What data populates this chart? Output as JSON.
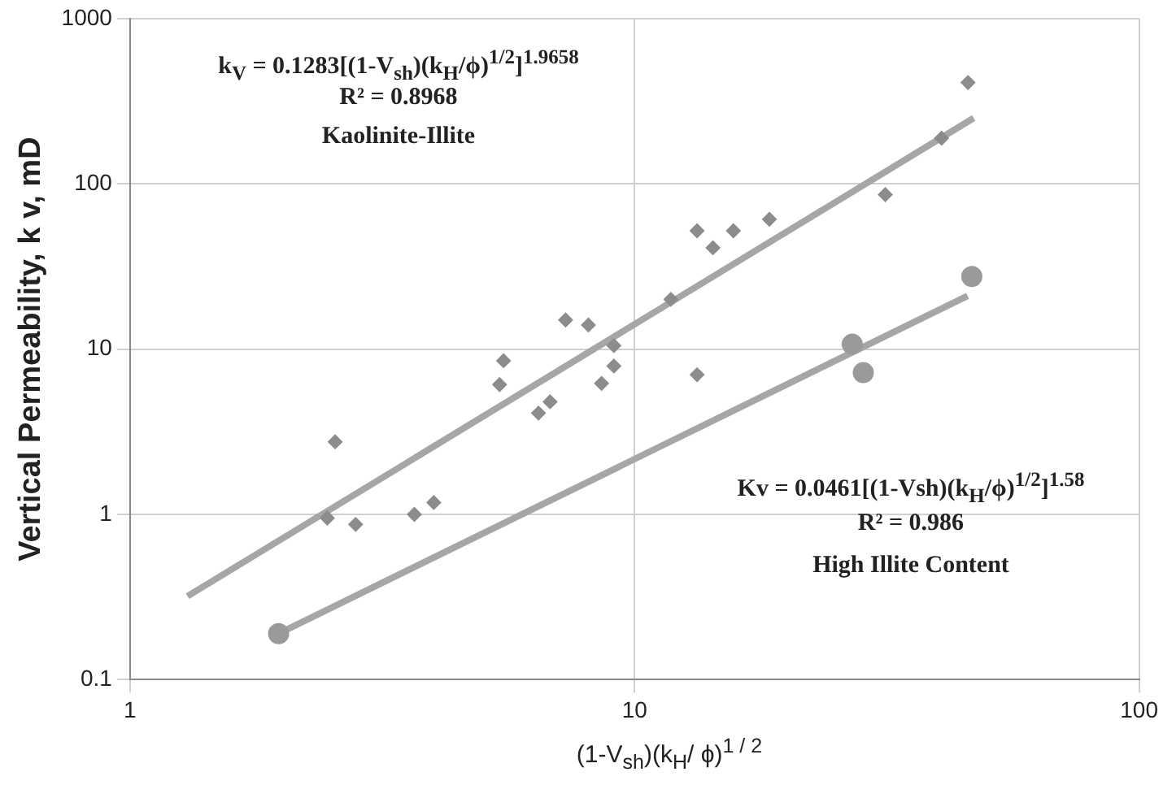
{
  "chart_data": {
    "type": "scatter",
    "xlabel": "(1-V$_{sh}$)(k$_{H}$/ ϕ)$^{1 / 2}$",
    "ylabel": "Vertical Permeability, k v, mD",
    "log": "xy",
    "grid": true,
    "xlim": [
      1,
      100
    ],
    "xticks": [
      1,
      10,
      100
    ],
    "ylim": [
      0.1,
      1000
    ],
    "yticks": [
      0.1,
      1,
      10,
      100,
      1000
    ],
    "series": [
      {
        "marker": "diamond",
        "color": "#8c8c8c",
        "x": [
          2.55,
          2.46,
          2.8,
          3.66,
          4.0,
          5.4,
          5.5,
          6.45,
          6.8,
          7.3,
          8.1,
          8.6,
          9.1,
          9.1,
          11.8,
          13.3,
          13.3,
          14.3,
          15.7,
          18.5,
          31.4,
          40.6,
          45.8
        ],
        "values": [
          2.75,
          0.95,
          0.87,
          1.0,
          1.18,
          6.1,
          8.5,
          4.1,
          4.8,
          15,
          14,
          6.2,
          10.5,
          7.9,
          20,
          7,
          52,
          41,
          52,
          61,
          86,
          189,
          410
        ]
      },
      {
        "marker": "circle",
        "color": "#9a9a9a",
        "x": [
          1.97,
          27,
          28.4,
          46.6
        ],
        "values": [
          0.19,
          10.7,
          7.2,
          27.5
        ]
      },
      {
        "type": "line",
        "marker": "none",
        "color": "#a6a6a6",
        "x": [
          1.3,
          47
        ],
        "values": [
          0.32,
          250
        ]
      },
      {
        "type": "line",
        "marker": "none",
        "color": "#a6a6a6",
        "x": [
          1.97,
          45.7
        ],
        "values": [
          0.19,
          21
        ]
      }
    ],
    "annotations": [
      "k$_{V}$ = 0.1283[(1-V$_{sh}$)(k$_{H}$/ϕ)$^{1/2}$]$^{1.9658}$",
      "R² = 0.8968",
      "Kaolinite-Illite",
      "Kv = 0.0461[(1-Vsh)(k$_{H}$/ϕ)$^{1/2}$]$^{1.58}$",
      "R² = 0.986",
      "High Illite Content"
    ]
  }
}
